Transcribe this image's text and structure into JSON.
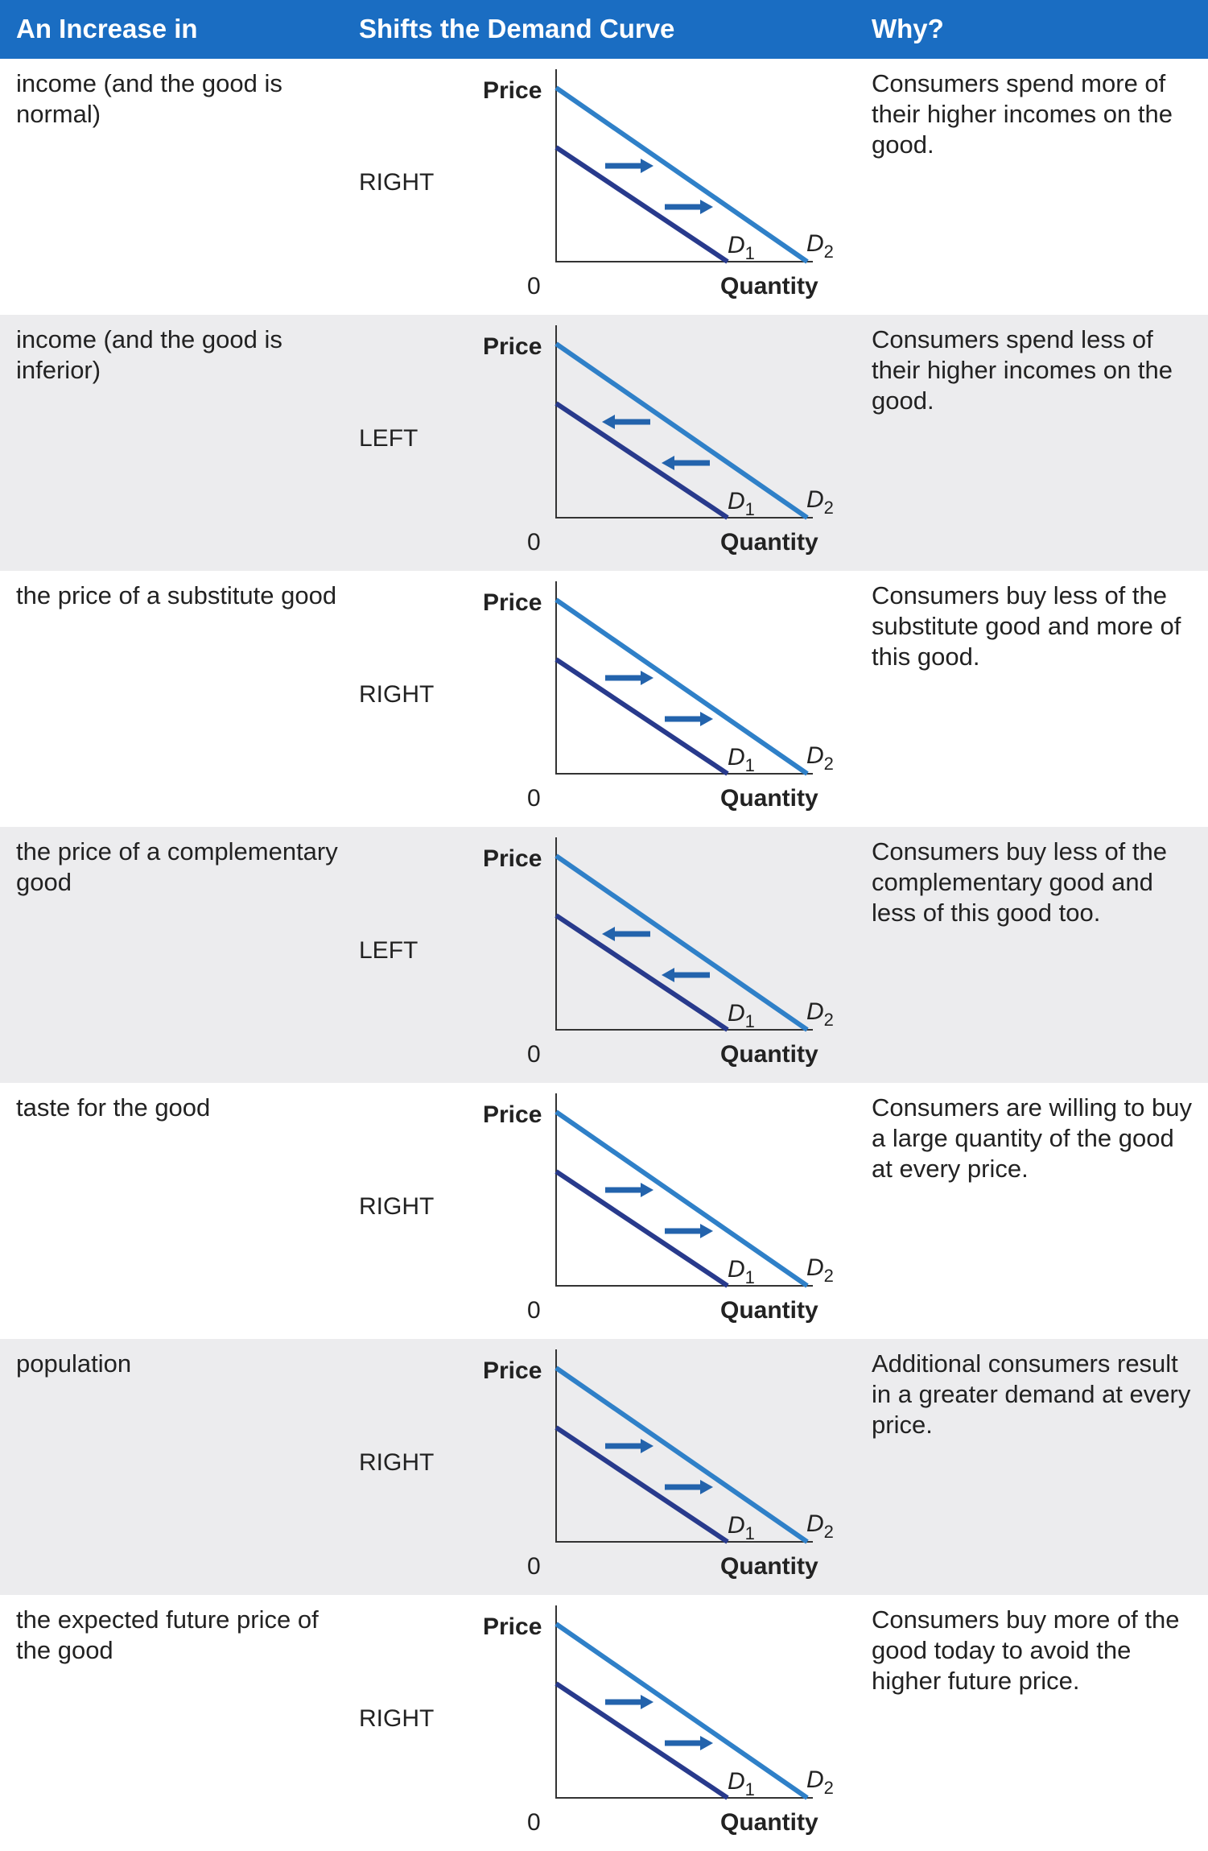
{
  "header": {
    "col1": "An Increase in",
    "col2": "Shifts the Demand Curve",
    "col3": "Why?"
  },
  "axis_labels": {
    "price": "Price",
    "quantity": "Quantity",
    "origin": "0",
    "d1_main": "D",
    "d1_sub": "1",
    "d2_main": "D",
    "d2_sub": "2"
  },
  "colors": {
    "header_bg": "#1a6dc2",
    "d1": "#283a8c",
    "d2": "#2f80c8",
    "arrow": "#2363ac",
    "row_shade": "#ececee"
  },
  "rows": [
    {
      "increase": "income (and the good is normal)",
      "direction": "RIGHT",
      "why": "Consumers spend more of their higher incomes on the good."
    },
    {
      "increase": "income (and the good is inferior)",
      "direction": "LEFT",
      "why": "Consumers spend less of their higher incomes on the good."
    },
    {
      "increase": "the price of a substitute good",
      "direction": "RIGHT",
      "why": "Consumers buy less of the substitute good and more of this good."
    },
    {
      "increase": "the price of a complementary good",
      "direction": "LEFT",
      "why": "Consumers buy less of the complementary good and less of this good too."
    },
    {
      "increase": "taste for the good",
      "direction": "RIGHT",
      "why": "Consumers are willing to buy a large quantity of the good at every price."
    },
    {
      "increase": "population",
      "direction": "RIGHT",
      "why": "Additional consumers result in a greater demand at every price."
    },
    {
      "increase": "the expected future price of the good",
      "direction": "RIGHT",
      "why": "Consumers buy more of the good today to avoid the higher future price."
    }
  ]
}
